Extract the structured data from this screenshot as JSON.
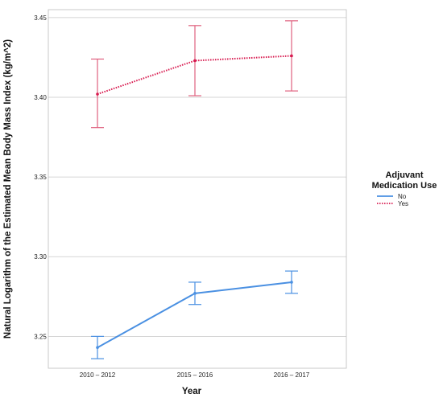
{
  "chart_data": {
    "type": "line",
    "title": "",
    "xlabel": "Year",
    "ylabel": "Natural Logarithm of the Estimated Mean Body Mass Index (kg/m^2)",
    "categories": [
      "2010 – 2012",
      "2015 – 2016",
      "2016 – 2017"
    ],
    "ylim": [
      3.23,
      3.455
    ],
    "yticks": [
      3.25,
      3.3,
      3.35,
      3.4,
      3.45
    ],
    "ytick_labels": [
      "3.25",
      "3.30",
      "3.35",
      "3.40",
      "3.45"
    ],
    "grid": "horizontal",
    "legend": {
      "title_line1": "Adjuvant",
      "title_line2": "Medication Use",
      "placement": "right"
    },
    "series": [
      {
        "name": "No",
        "color": "#4a90e2",
        "line_style": "solid",
        "values": [
          3.243,
          3.277,
          3.284
        ],
        "err_low": [
          3.236,
          3.27,
          3.277
        ],
        "err_high": [
          3.25,
          3.284,
          3.291
        ]
      },
      {
        "name": "Yes",
        "color": "#d81b50",
        "error_color": "#e0607e",
        "line_style": "dotted",
        "values": [
          3.402,
          3.423,
          3.426
        ],
        "err_low": [
          3.381,
          3.401,
          3.404
        ],
        "err_high": [
          3.424,
          3.445,
          3.448
        ]
      }
    ]
  }
}
